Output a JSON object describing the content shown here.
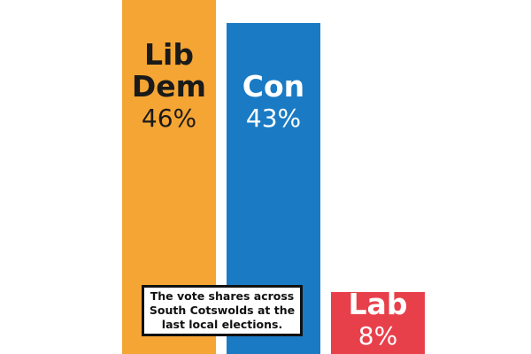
{
  "chart_data": {
    "type": "bar",
    "categories": [
      "Lib Dem",
      "Con",
      "Lab"
    ],
    "values": [
      46,
      43,
      8
    ],
    "value_labels": [
      "46%",
      "43%",
      "8%"
    ],
    "colors": [
      "#f5a533",
      "#1a7bc4",
      "#e8404b"
    ],
    "annotation": "The vote shares across South Cotswolds at the last local elections."
  }
}
